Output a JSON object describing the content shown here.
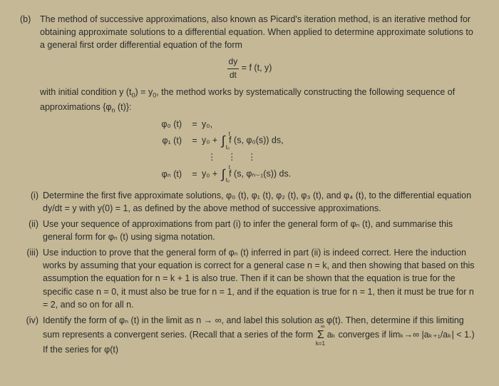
{
  "colors": {
    "background": "#c4b896",
    "text": "#2a2a2a"
  },
  "typography": {
    "family": "Arial",
    "size_pt": 12.5,
    "line_height": 1.45
  },
  "part_b": {
    "label": "(b)",
    "intro": "The method of successive approximations, also known as Picard's iteration method, is an iterative method for obtaining approximate solutions to a differential equation. When applied to determine approximate solutions to a general first order differential equation of the form",
    "eq1_lhs_num": "dy",
    "eq1_lhs_den": "dt",
    "eq1_rhs": "= f (t, y)",
    "cond_text_1": "with initial condition y (t",
    "cond_sub_0a": "0",
    "cond_text_2": ") = y",
    "cond_sub_0b": "0",
    "cond_text_3": ", the method works by systematically constructing the following sequence of approximations {φ",
    "cond_sub_n": "n",
    "cond_text_4": " (t)}:",
    "approx": {
      "r1_lhs": "φ₀ (t)",
      "r1_eq": "=",
      "r1_rhs": "y₀,",
      "r2_lhs": "φ₁ (t)",
      "r2_eq": "=",
      "r2_rhs_pre": "y₀ + ",
      "r2_int_top": "t",
      "r2_int_bot": "t₀",
      "r2_rhs_post": " f (s, φ₀(s)) ds,",
      "dots": "⋮  ⋮  ⋮",
      "r3_lhs": "φₙ (t)",
      "r3_eq": "=",
      "r3_rhs_pre": "y₀ + ",
      "r3_int_top": "t",
      "r3_int_bot": "t₀",
      "r3_rhs_post": " f (s, φₙ₋₁(s)) ds."
    },
    "items": {
      "i": {
        "label": "(i)",
        "text": "Determine the first five approximate solutions, φ₀ (t), φ₁ (t), φ₂ (t), φ₃ (t), and φ₄ (t), to the differential equation dy/dt = y with y(0) = 1, as defined by the above method of successive approximations."
      },
      "ii": {
        "label": "(ii)",
        "text": "Use your sequence of approximations from part (i) to infer the general form of φₙ (t), and summarise this general form for φₙ (t) using sigma notation."
      },
      "iii": {
        "label": "(iii)",
        "text": "Use induction to prove that the general form of φₙ (t) inferred in part (ii) is indeed correct. Here the induction works by assuming that your equation is correct for a general case n = k, and then showing that based on this assumption the equation for n = k + 1 is also true. Then if it can be shown that the equation is true for the specific case n = 0, it must also be true for n = 1, and if the equation is true for n = 1, then it must be true for n = 2, and so on for all n."
      },
      "iv": {
        "label": "(iv)",
        "text_1": "Identify the form of φₙ (t) in the limit as n → ∞, and label this solution as φ(t). Then, determine if this limiting sum represents a convergent series. (Recall that a series of the form ",
        "sigma_top": "∞",
        "sigma_bot": "k=1",
        "text_2": "aₖ converges if limₖ→∞ |aₖ₊₁/aₖ| < 1.)  If the series for φ(t)"
      }
    }
  }
}
